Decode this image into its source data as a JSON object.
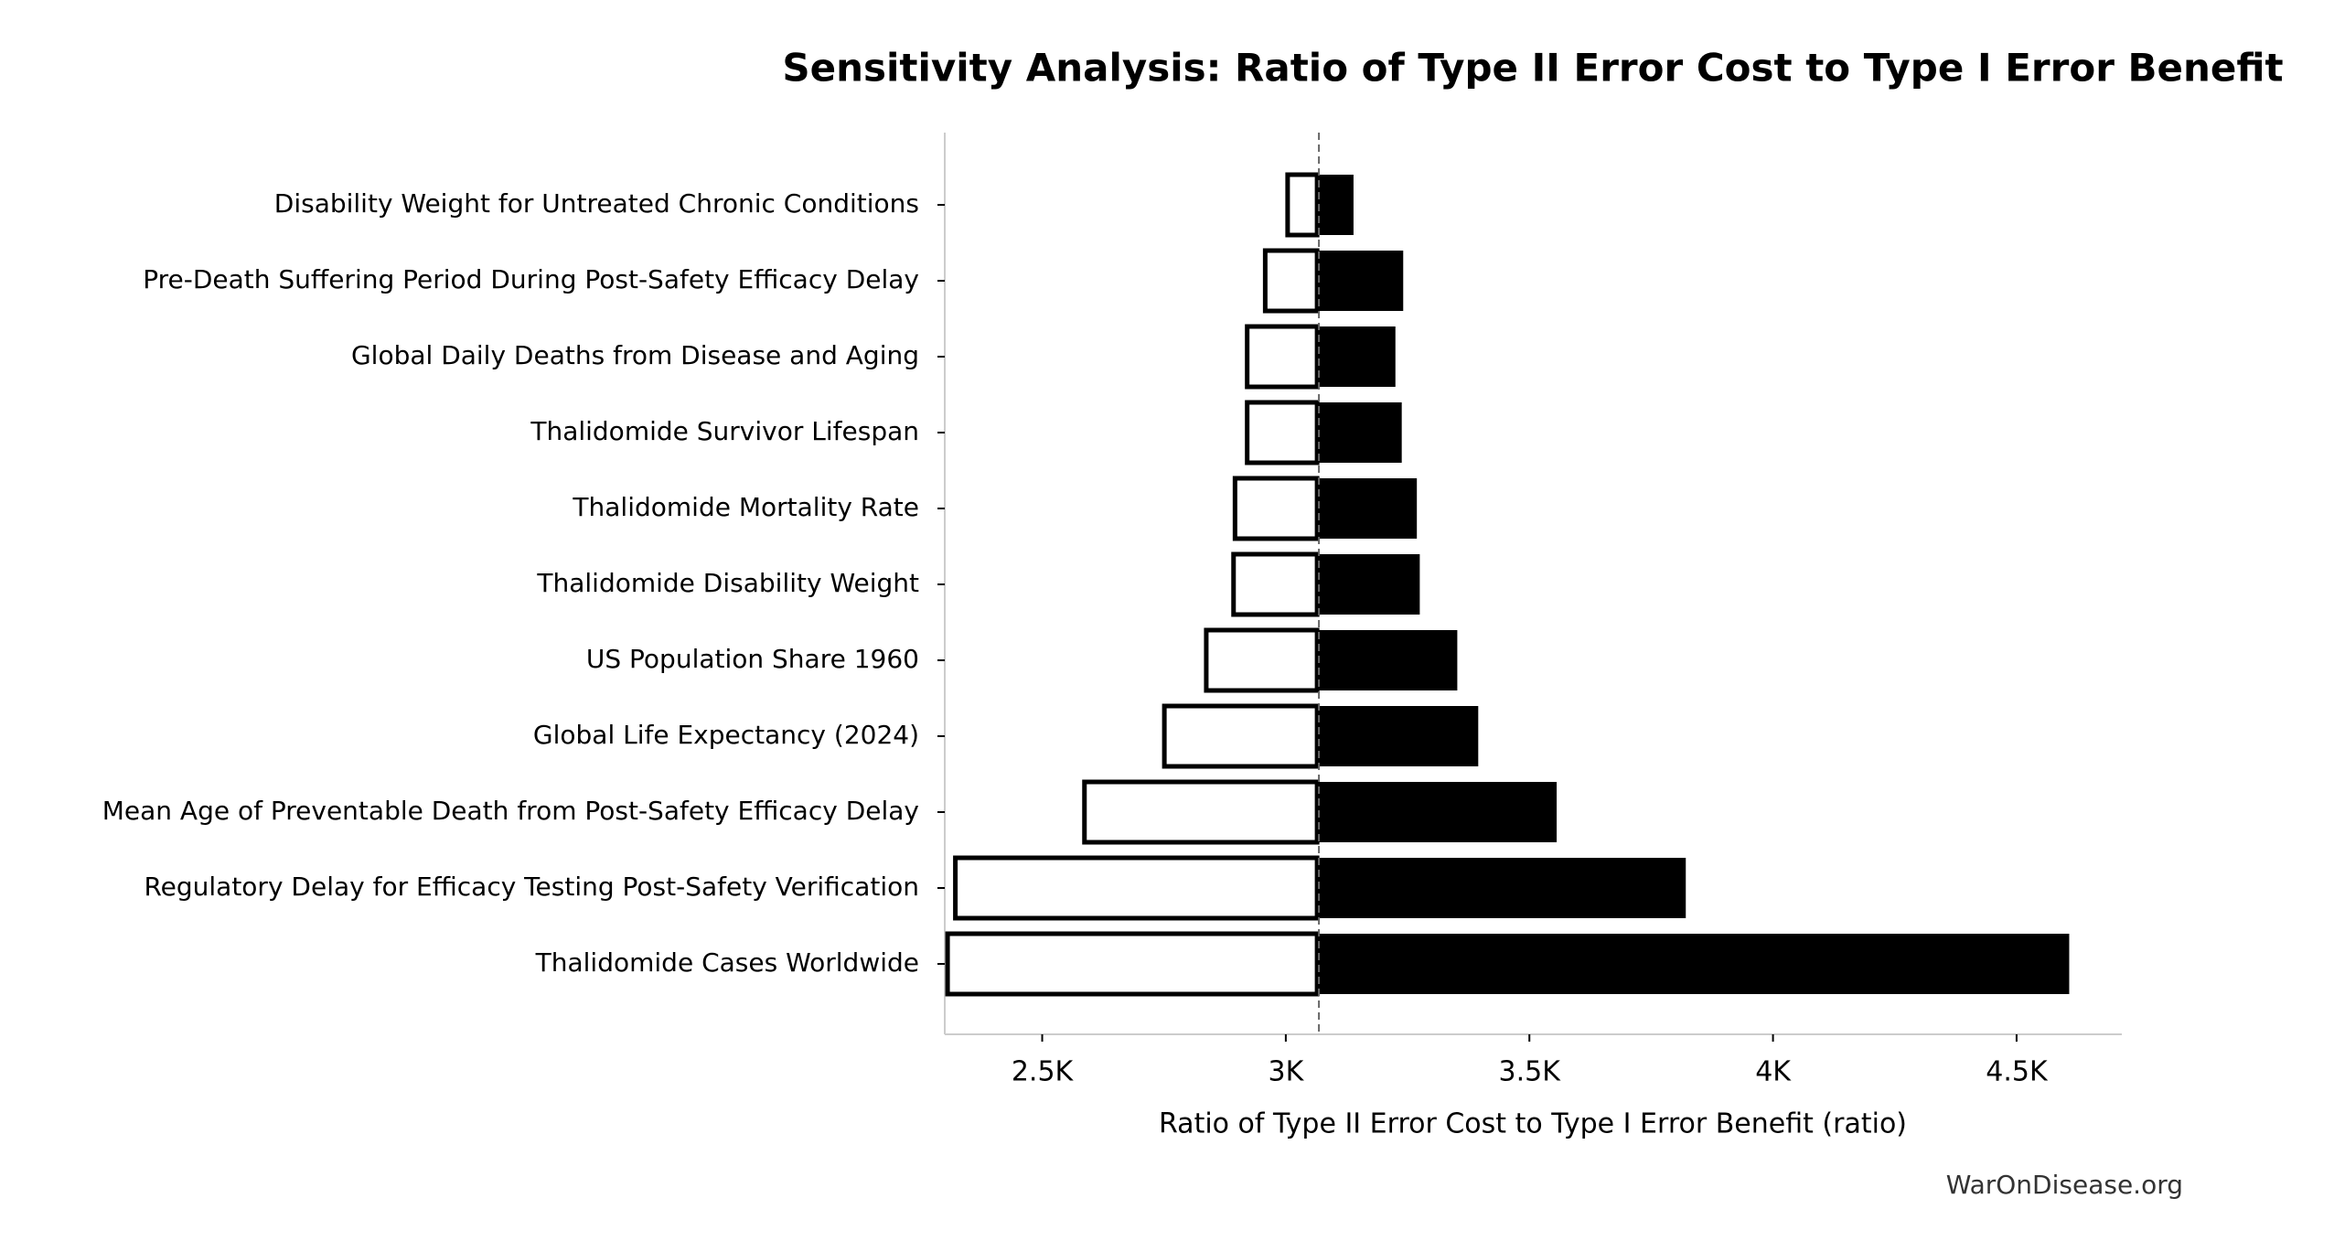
{
  "chart_data": {
    "type": "tornado",
    "title": "Sensitivity Analysis: Ratio of Type II Error Cost to Type I Error Benefit",
    "xlabel": "Ratio of Type II Error Cost to Type I Error Benefit (ratio)",
    "source": "WarOnDisease.org",
    "categories": [
      "Disability Weight for Untreated Chronic Conditions",
      "Pre-Death Suffering Period During Post-Safety Efficacy Delay",
      "Global Daily Deaths from Disease and Aging",
      "Thalidomide Survivor Lifespan",
      "Thalidomide Mortality Rate",
      "Thalidomide Disability Weight",
      "US Population Share 1960",
      "Global Life Expectancy (2024)",
      "Mean Age of Preventable Death from Post-Safety Efficacy Delay",
      "Regulatory Delay for Efficacy Testing Post-Safety Verification",
      "Thalidomide Cases Worldwide"
    ],
    "low_values": [
      3000,
      2954,
      2917,
      2917,
      2892,
      2889,
      2833,
      2747,
      2583,
      2318,
      2302
    ],
    "high_values": [
      3139,
      3241,
      3225,
      3238,
      3269,
      3275,
      3352,
      3395,
      3556,
      3821,
      4608
    ],
    "baseline": 3068,
    "low_color": "#ffffff",
    "high_color": "#000000",
    "xlim": [
      2300,
      4716
    ],
    "xticks": [
      {
        "value": 2500,
        "label": "2.5K"
      },
      {
        "value": 3000,
        "label": "3K"
      },
      {
        "value": 3500,
        "label": "3.5K"
      },
      {
        "value": 4000,
        "label": "4K"
      },
      {
        "value": 4500,
        "label": "4.5K"
      }
    ]
  }
}
